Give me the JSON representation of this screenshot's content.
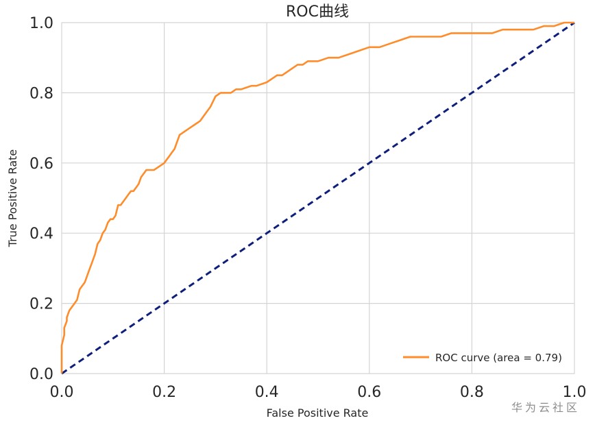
{
  "chart_data": {
    "type": "line",
    "title": "ROC曲线",
    "xlabel": "False Positive Rate",
    "ylabel": "True Positive Rate",
    "xlim": [
      0.0,
      1.0
    ],
    "ylim": [
      0.0,
      1.0
    ],
    "x_ticks": [
      "0.0",
      "0.2",
      "0.4",
      "0.6",
      "0.8",
      "1.0"
    ],
    "y_ticks": [
      "0.0",
      "0.2",
      "0.4",
      "0.6",
      "0.8",
      "1.0"
    ],
    "grid": true,
    "legend_position": "lower-right",
    "series": [
      {
        "name": "ROC curve (area = 0.79)",
        "color": "#ff8c2a",
        "style": "solid",
        "x": [
          0.0,
          0.0,
          0.005,
          0.005,
          0.01,
          0.01,
          0.015,
          0.02,
          0.025,
          0.03,
          0.035,
          0.04,
          0.045,
          0.05,
          0.055,
          0.06,
          0.065,
          0.07,
          0.075,
          0.08,
          0.085,
          0.09,
          0.095,
          0.1,
          0.105,
          0.11,
          0.115,
          0.12,
          0.125,
          0.13,
          0.135,
          0.14,
          0.145,
          0.15,
          0.155,
          0.16,
          0.165,
          0.17,
          0.18,
          0.19,
          0.2,
          0.205,
          0.21,
          0.215,
          0.22,
          0.225,
          0.23,
          0.24,
          0.25,
          0.26,
          0.27,
          0.28,
          0.29,
          0.3,
          0.31,
          0.32,
          0.33,
          0.34,
          0.35,
          0.37,
          0.38,
          0.4,
          0.41,
          0.42,
          0.43,
          0.44,
          0.45,
          0.46,
          0.47,
          0.48,
          0.5,
          0.52,
          0.54,
          0.56,
          0.58,
          0.6,
          0.62,
          0.64,
          0.66,
          0.68,
          0.7,
          0.72,
          0.74,
          0.76,
          0.78,
          0.8,
          0.82,
          0.84,
          0.86,
          0.88,
          0.9,
          0.92,
          0.94,
          0.96,
          0.98,
          1.0
        ],
        "y": [
          0.0,
          0.08,
          0.11,
          0.13,
          0.15,
          0.16,
          0.18,
          0.19,
          0.2,
          0.21,
          0.24,
          0.25,
          0.26,
          0.28,
          0.3,
          0.32,
          0.34,
          0.37,
          0.38,
          0.4,
          0.41,
          0.43,
          0.44,
          0.44,
          0.45,
          0.48,
          0.48,
          0.49,
          0.5,
          0.51,
          0.52,
          0.52,
          0.53,
          0.54,
          0.56,
          0.57,
          0.58,
          0.58,
          0.58,
          0.59,
          0.6,
          0.61,
          0.62,
          0.63,
          0.64,
          0.66,
          0.68,
          0.69,
          0.7,
          0.71,
          0.72,
          0.74,
          0.76,
          0.79,
          0.8,
          0.8,
          0.8,
          0.81,
          0.81,
          0.82,
          0.82,
          0.83,
          0.84,
          0.85,
          0.85,
          0.86,
          0.87,
          0.88,
          0.88,
          0.89,
          0.89,
          0.9,
          0.9,
          0.91,
          0.92,
          0.93,
          0.93,
          0.94,
          0.95,
          0.96,
          0.96,
          0.96,
          0.96,
          0.97,
          0.97,
          0.97,
          0.97,
          0.97,
          0.98,
          0.98,
          0.98,
          0.98,
          0.99,
          0.99,
          1.0,
          1.0
        ]
      },
      {
        "name": "",
        "color": "#0d1f7a",
        "style": "dashed",
        "x": [
          0.0,
          1.0
        ],
        "y": [
          0.0,
          1.0
        ]
      }
    ]
  },
  "watermark": "华为云社区"
}
